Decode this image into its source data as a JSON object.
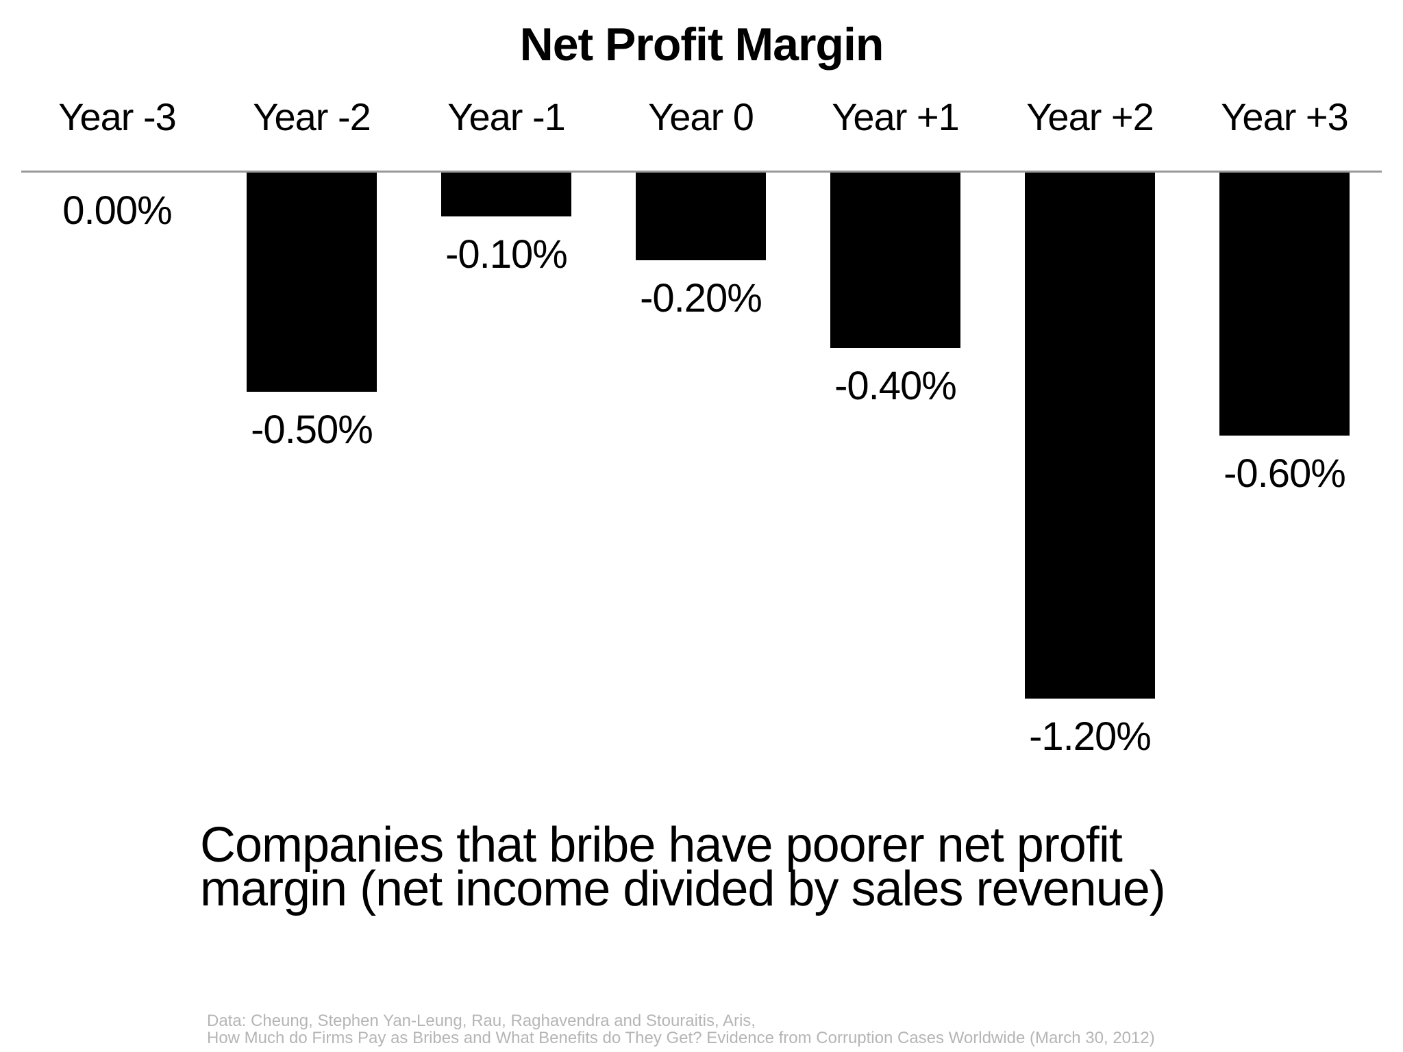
{
  "chart_data": {
    "type": "bar",
    "title": "Net Profit Margin",
    "categories": [
      "Year -3",
      "Year -2",
      "Year -1",
      "Year 0",
      "Year +1",
      "Year +2",
      "Year +3"
    ],
    "values": [
      0.0,
      -0.5,
      -0.1,
      -0.2,
      -0.4,
      -1.2,
      -0.6
    ],
    "value_labels": [
      "0.00%",
      "-0.50%",
      "-0.10%",
      "-0.20%",
      "-0.40%",
      "-1.20%",
      "-0.60%"
    ],
    "unit": "%",
    "ylim": [
      -1.3,
      0
    ],
    "xlabel": "",
    "ylabel": "",
    "grid": "off",
    "legend": "none",
    "category_label_position": "above-axis",
    "value_label_position": "below-bar"
  },
  "subtitle": {
    "line1": "Companies that bribe have poorer net profit",
    "line2": "margin (net income divided by sales revenue)"
  },
  "footnote": {
    "line1": "Data: Cheung, Stephen Yan-Leung, Rau, Raghavendra and Stouraitis, Aris,",
    "line2": "How Much do Firms Pay as Bribes and What Benefits do They Get? Evidence from Corruption Cases Worldwide (March 30, 2012)"
  },
  "colors": {
    "bar": "#000000",
    "axis_line": "#999999",
    "text": "#000000",
    "footnote_text": "#b5b5b5"
  }
}
